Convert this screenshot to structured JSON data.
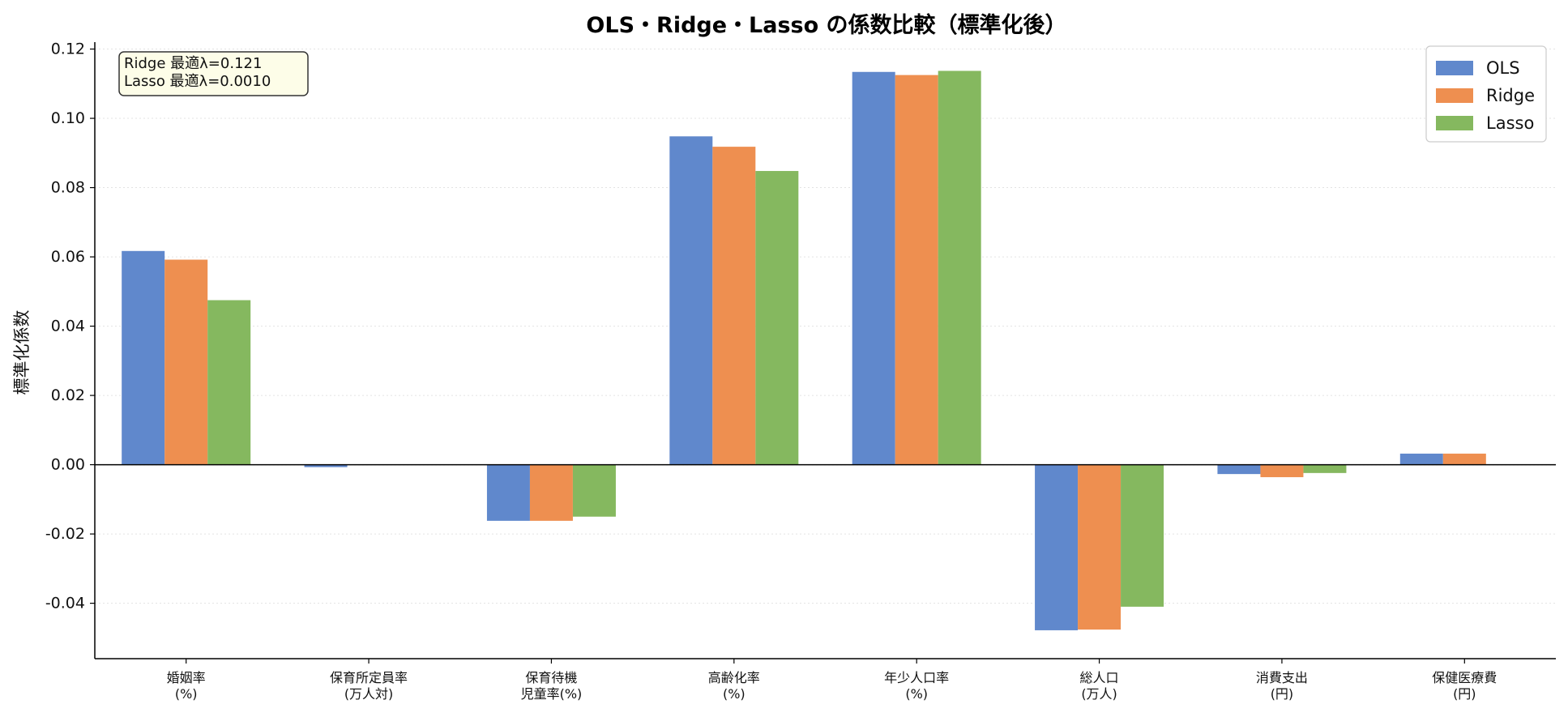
{
  "chart_data": {
    "type": "bar",
    "title": "OLS・Ridge・Lasso の係数比較（標準化後）",
    "ylabel": "標準化係数",
    "xlabel": "",
    "ylim": [
      -0.056,
      0.122
    ],
    "yticks": [
      -0.04,
      -0.02,
      0.0,
      0.02,
      0.04,
      0.06,
      0.08,
      0.1,
      0.12
    ],
    "ytick_labels": [
      "-0.04",
      "-0.02",
      "0.00",
      "0.02",
      "0.04",
      "0.06",
      "0.08",
      "0.10",
      "0.12"
    ],
    "grid": "horizontal dotted",
    "legend_position": "top-right",
    "categories": [
      [
        "婚姻率",
        "(%)"
      ],
      [
        "保育所定員率",
        "(万人対)"
      ],
      [
        "保育待機",
        "児童率(%)"
      ],
      [
        "高齢化率",
        "(%)"
      ],
      [
        "年少人口率",
        "(%)"
      ],
      [
        "総人口",
        "(万人)"
      ],
      [
        "消費支出",
        "(円)"
      ],
      [
        "保健医療費",
        "(円)"
      ]
    ],
    "series": [
      {
        "name": "OLS",
        "color": "#6088cc",
        "values": [
          0.0617,
          -0.0007,
          -0.0162,
          0.0948,
          0.1134,
          -0.0478,
          -0.0027,
          0.0032
        ]
      },
      {
        "name": "Ridge",
        "color": "#ee8f50",
        "values": [
          0.0592,
          0.0,
          -0.0162,
          0.0918,
          0.1125,
          -0.0476,
          -0.0036,
          0.0032
        ]
      },
      {
        "name": "Lasso",
        "color": "#85b85f",
        "values": [
          0.0475,
          0.0,
          -0.015,
          0.0848,
          0.1137,
          -0.041,
          -0.0024,
          0.0
        ]
      }
    ],
    "annotation": [
      "Ridge 最適λ=0.121",
      "Lasso 最適λ=0.0010"
    ]
  }
}
